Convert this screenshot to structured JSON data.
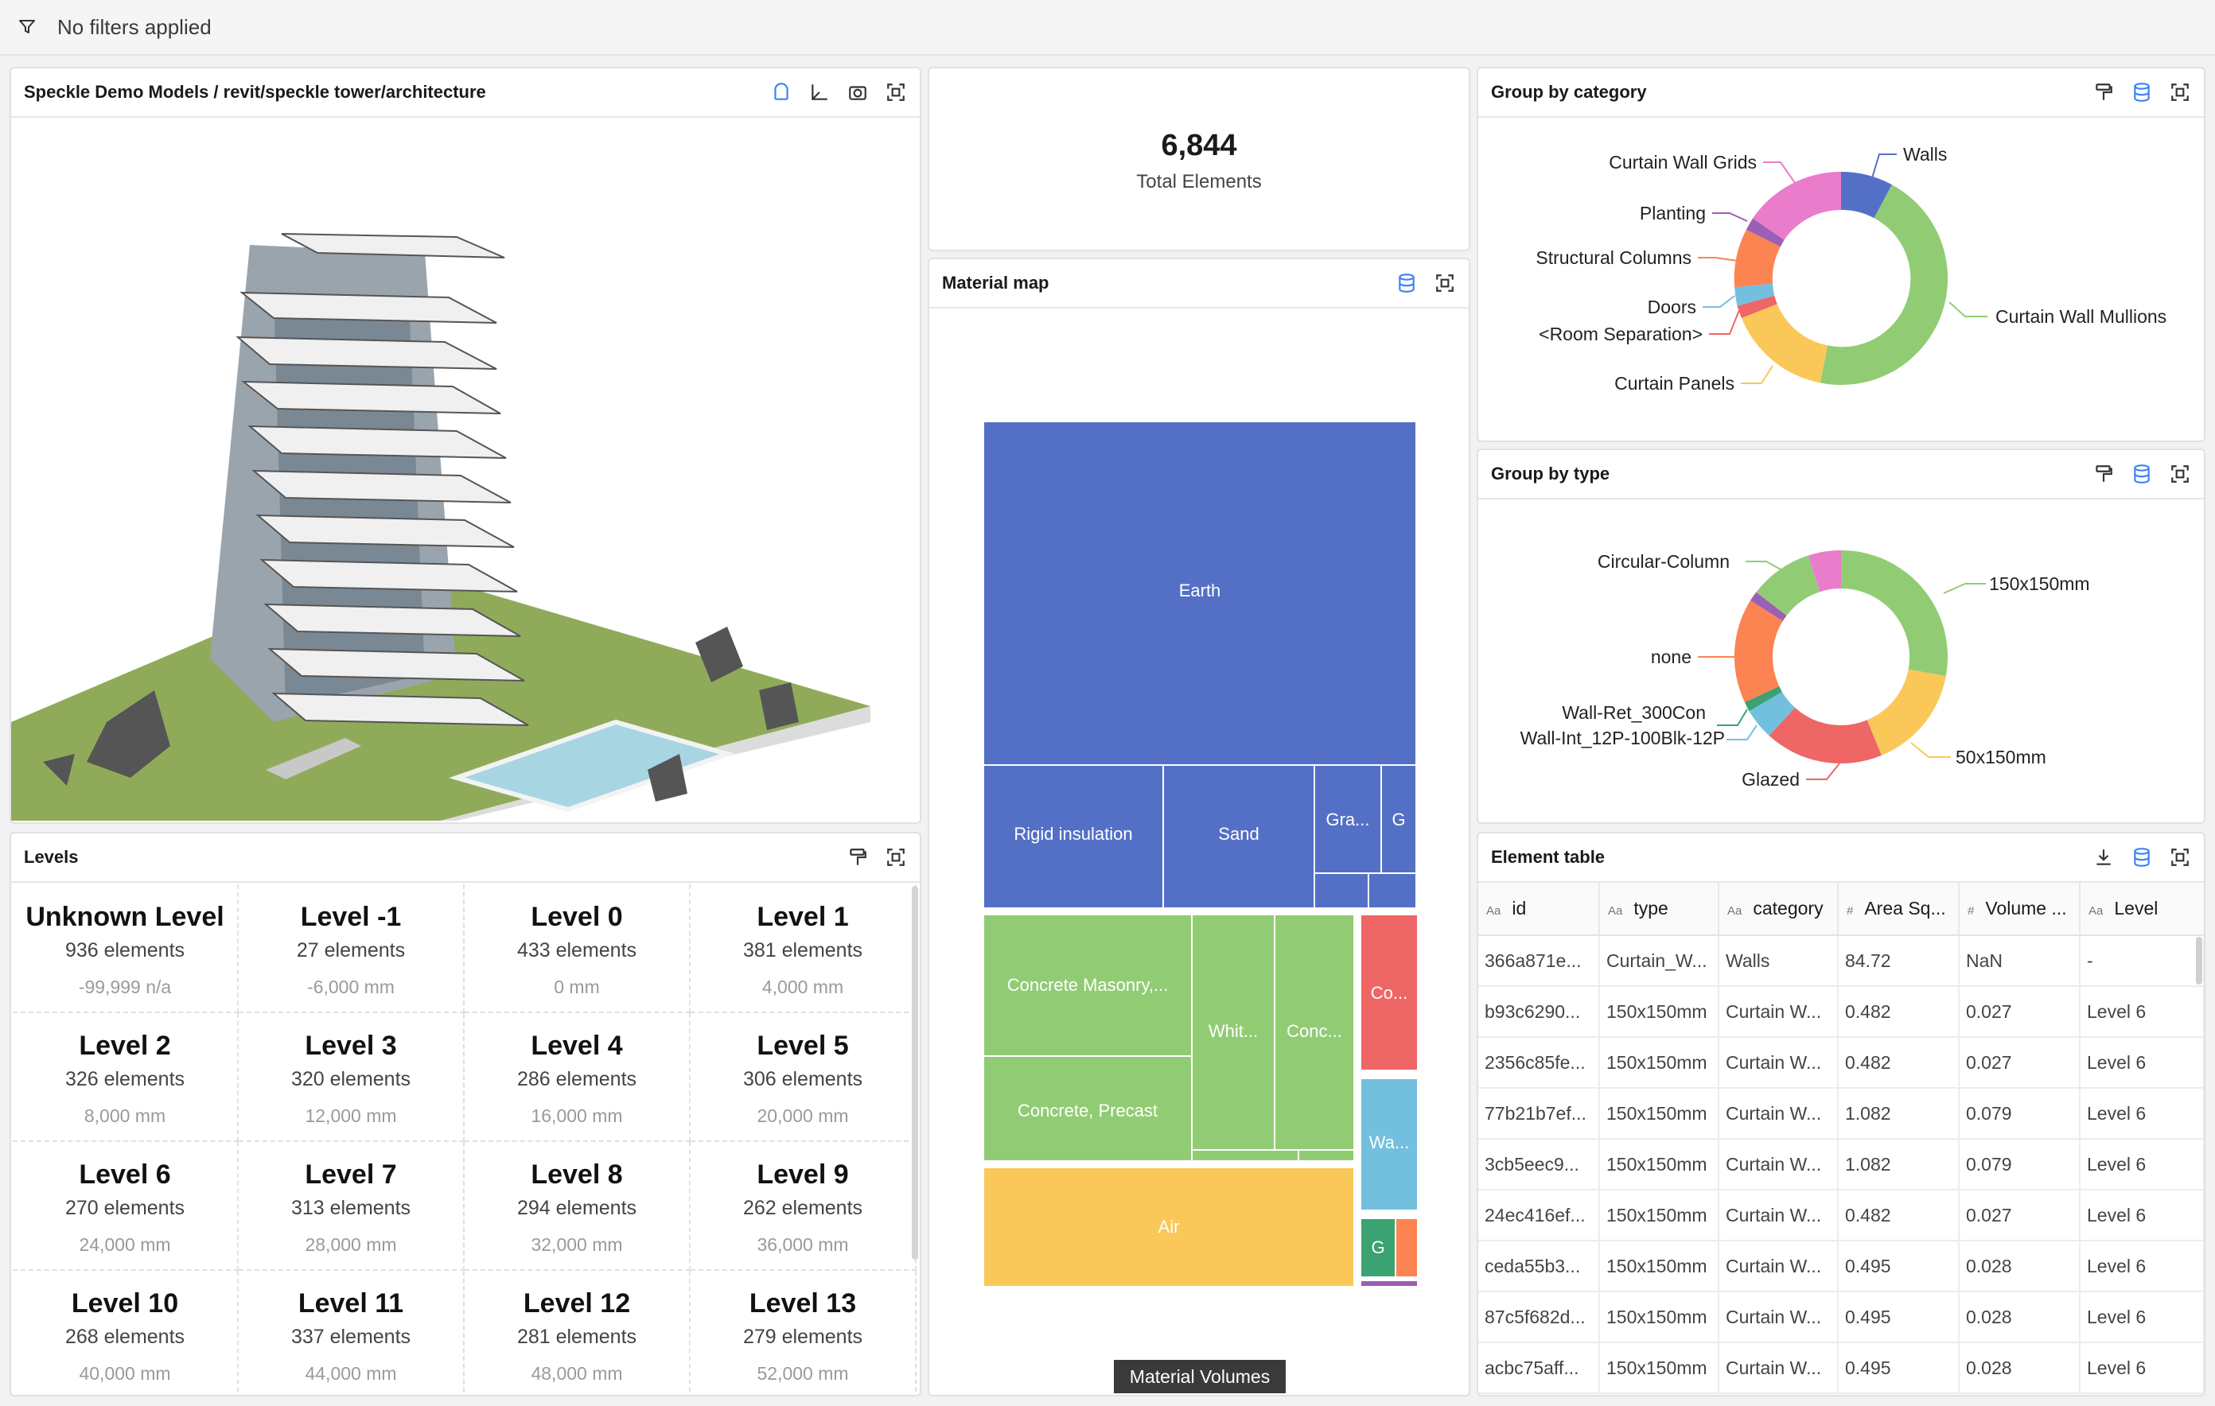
{
  "filter_bar": {
    "label": "No filters applied"
  },
  "viewer": {
    "title": "Speckle Demo Models / revit/speckle tower/architecture"
  },
  "kpi": {
    "value": "6,844",
    "label": "Total Elements"
  },
  "material_map": {
    "title": "Material map",
    "footer": "Material Volumes"
  },
  "levels": {
    "title": "Levels",
    "items": [
      {
        "name": "Unknown Level",
        "count": "936 elements",
        "elevation": "-99,999 n/a"
      },
      {
        "name": "Level -1",
        "count": "27 elements",
        "elevation": "-6,000 mm"
      },
      {
        "name": "Level 0",
        "count": "433 elements",
        "elevation": "0 mm"
      },
      {
        "name": "Level 1",
        "count": "381 elements",
        "elevation": "4,000 mm"
      },
      {
        "name": "Level 2",
        "count": "326 elements",
        "elevation": "8,000 mm"
      },
      {
        "name": "Level 3",
        "count": "320 elements",
        "elevation": "12,000 mm"
      },
      {
        "name": "Level 4",
        "count": "286 elements",
        "elevation": "16,000 mm"
      },
      {
        "name": "Level 5",
        "count": "306 elements",
        "elevation": "20,000 mm"
      },
      {
        "name": "Level 6",
        "count": "270 elements",
        "elevation": "24,000 mm"
      },
      {
        "name": "Level 7",
        "count": "313 elements",
        "elevation": "28,000 mm"
      },
      {
        "name": "Level 8",
        "count": "294 elements",
        "elevation": "32,000 mm"
      },
      {
        "name": "Level 9",
        "count": "262 elements",
        "elevation": "36,000 mm"
      },
      {
        "name": "Level 10",
        "count": "268 elements",
        "elevation": "40,000 mm"
      },
      {
        "name": "Level 11",
        "count": "337 elements",
        "elevation": "44,000 mm"
      },
      {
        "name": "Level 12",
        "count": "281 elements",
        "elevation": "48,000 mm"
      },
      {
        "name": "Level 13",
        "count": "279 elements",
        "elevation": "52,000 mm"
      }
    ]
  },
  "group_category": {
    "title": "Group by category",
    "labels": [
      "Walls",
      "Curtain Wall Mullions",
      "Curtain Panels",
      "<Room Separation>",
      "Doors",
      "Structural Columns",
      "Planting",
      "Curtain Wall Grids"
    ]
  },
  "group_type": {
    "title": "Group by type",
    "labels": [
      "150x150mm",
      "50x150mm",
      "Glazed",
      "Wall-Int_12P-100Blk-12P",
      "Wall-Ret_300Con",
      "none",
      "Circular-Column"
    ]
  },
  "element_table": {
    "title": "Element table",
    "columns": [
      {
        "type": "Aa",
        "label": "id"
      },
      {
        "type": "Aa",
        "label": "type"
      },
      {
        "type": "Aa",
        "label": "category"
      },
      {
        "type": "#",
        "label": "Area Sq..."
      },
      {
        "type": "#",
        "label": "Volume ..."
      },
      {
        "type": "Aa",
        "label": "Level"
      }
    ],
    "rows": [
      [
        "366a871e...",
        "Curtain_W...",
        "Walls",
        "84.72",
        "NaN",
        "-"
      ],
      [
        "b93c6290...",
        "150x150mm",
        "Curtain W...",
        "0.482",
        "0.027",
        "Level 6"
      ],
      [
        "2356c85fe...",
        "150x150mm",
        "Curtain W...",
        "0.482",
        "0.027",
        "Level 6"
      ],
      [
        "77b21b7ef...",
        "150x150mm",
        "Curtain W...",
        "1.082",
        "0.079",
        "Level 6"
      ],
      [
        "3cb5eec9...",
        "150x150mm",
        "Curtain W...",
        "1.082",
        "0.079",
        "Level 6"
      ],
      [
        "24ec416ef...",
        "150x150mm",
        "Curtain W...",
        "0.482",
        "0.027",
        "Level 6"
      ],
      [
        "ceda55b3...",
        "150x150mm",
        "Curtain W...",
        "0.495",
        "0.028",
        "Level 6"
      ],
      [
        "87c5f682d...",
        "150x150mm",
        "Curtain W...",
        "0.495",
        "0.028",
        "Level 6"
      ],
      [
        "acbc75aff...",
        "150x150mm",
        "Curtain W...",
        "0.495",
        "0.028",
        "Level 6"
      ]
    ]
  },
  "chart_data": [
    {
      "type": "treemap",
      "title": "Material map",
      "cells": [
        {
          "label": "Earth",
          "color": "#5470c6"
        },
        {
          "label": "Rigid insulation",
          "color": "#5470c6"
        },
        {
          "label": "Sand",
          "color": "#5470c6"
        },
        {
          "label": "Gra...",
          "color": "#5470c6"
        },
        {
          "label": "G",
          "color": "#5470c6"
        },
        {
          "label": "Concrete Masonry,...",
          "color": "#91cc75"
        },
        {
          "label": "Concrete, Precast",
          "color": "#91cc75"
        },
        {
          "label": "Whit...",
          "color": "#91cc75"
        },
        {
          "label": "Conc...",
          "color": "#91cc75"
        },
        {
          "label": "Air",
          "color": "#fac858"
        },
        {
          "label": "Co...",
          "color": "#ee6666"
        },
        {
          "label": "Wa...",
          "color": "#73c0de"
        },
        {
          "label": "G",
          "color": "#3ba272"
        }
      ],
      "legend": "Material Volumes"
    },
    {
      "type": "pie",
      "title": "Group by category",
      "colors": {
        "Walls": "#5470c6",
        "Curtain Wall Mullions": "#91cc75",
        "Curtain Panels": "#fac858",
        "<Room Separation>": "#ee6666",
        "Doors": "#73c0de",
        "Structural Columns": "#fc8452",
        "Planting": "#9a60b4",
        "Curtain Wall Grids": "#ea7ccc"
      }
    },
    {
      "type": "pie",
      "title": "Group by type",
      "colors": {
        "150x150mm": "#91cc75",
        "50x150mm": "#fac858",
        "Glazed": "#ee6666",
        "Wall-Int_12P-100Blk-12P": "#73c0de",
        "Wall-Ret_300Con": "#3ba272",
        "none": "#fc8452",
        "Circular-Column": "#91cc75"
      }
    }
  ]
}
